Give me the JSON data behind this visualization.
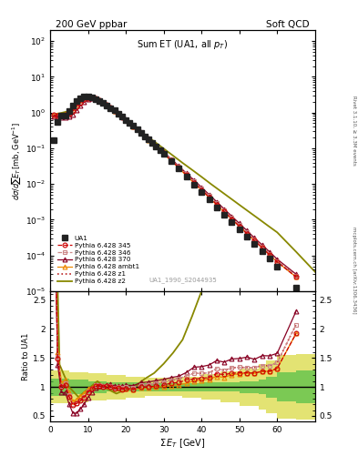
{
  "title_left": "200 GeV ppbar",
  "title_right": "Soft QCD",
  "plot_title": "Sum ET (UA1, all p_{T})",
  "watermark": "UA1_1990_S2044935",
  "right_label_top": "Rivet 3.1.10, ≥ 3.3M events",
  "right_label_bot": "mcplots.cern.ch [arXiv:1306.3436]",
  "xlabel": "Σ E_T [GeV]",
  "ylabel_main": "dσ/dsum E_T [mb,GeV⁻¹]",
  "ylabel_ratio": "Ratio to UA1",
  "ua1_x": [
    1.0,
    2.0,
    3.0,
    4.0,
    5.0,
    6.0,
    7.0,
    8.0,
    9.0,
    10.0,
    11.0,
    12.0,
    13.0,
    14.0,
    15.0,
    16.0,
    17.0,
    18.0,
    19.0,
    20.0,
    21.0,
    22.0,
    23.0,
    24.0,
    25.0,
    26.0,
    27.0,
    28.0,
    29.0,
    30.0,
    32.0,
    34.0,
    36.0,
    38.0,
    40.0,
    42.0,
    44.0,
    46.0,
    48.0,
    50.0,
    52.0,
    54.0,
    56.0,
    58.0,
    60.0,
    65.0
  ],
  "ua1_y": [
    0.17,
    0.55,
    0.82,
    0.82,
    1.1,
    1.6,
    2.1,
    2.5,
    2.8,
    2.8,
    2.7,
    2.4,
    2.15,
    1.9,
    1.6,
    1.35,
    1.15,
    0.95,
    0.78,
    0.63,
    0.52,
    0.42,
    0.34,
    0.27,
    0.215,
    0.175,
    0.14,
    0.11,
    0.087,
    0.07,
    0.043,
    0.027,
    0.016,
    0.0097,
    0.006,
    0.0037,
    0.0022,
    0.0014,
    0.00085,
    0.00053,
    0.00033,
    0.00021,
    0.00013,
    8.2e-05,
    5e-05,
    1.3e-05
  ],
  "p345_x": [
    1,
    2,
    3,
    4,
    5,
    6,
    7,
    8,
    9,
    10,
    11,
    12,
    13,
    14,
    15,
    16,
    17,
    18,
    19,
    20,
    22,
    24,
    26,
    28,
    30,
    32,
    34,
    36,
    38,
    40,
    42,
    44,
    46,
    48,
    50,
    52,
    54,
    56,
    58,
    60,
    65
  ],
  "p345_y": [
    0.85,
    0.82,
    0.82,
    0.85,
    0.92,
    1.1,
    1.5,
    1.9,
    2.3,
    2.55,
    2.6,
    2.45,
    2.2,
    1.9,
    1.62,
    1.36,
    1.12,
    0.93,
    0.75,
    0.61,
    0.4,
    0.27,
    0.175,
    0.112,
    0.072,
    0.046,
    0.029,
    0.018,
    0.011,
    0.0069,
    0.0043,
    0.0027,
    0.0017,
    0.00105,
    0.00066,
    0.00041,
    0.00026,
    0.000165,
    0.000104,
    6.6e-05,
    2.5e-05
  ],
  "p346_x": [
    1,
    2,
    3,
    4,
    5,
    6,
    7,
    8,
    9,
    10,
    11,
    12,
    13,
    14,
    15,
    16,
    17,
    18,
    19,
    20,
    22,
    24,
    26,
    28,
    30,
    32,
    34,
    36,
    38,
    40,
    42,
    44,
    46,
    48,
    50,
    52,
    54,
    56,
    58,
    60,
    65
  ],
  "p346_y": [
    0.87,
    0.84,
    0.84,
    0.87,
    0.95,
    1.12,
    1.52,
    1.93,
    2.33,
    2.57,
    2.62,
    2.47,
    2.22,
    1.93,
    1.64,
    1.38,
    1.14,
    0.95,
    0.77,
    0.63,
    0.415,
    0.278,
    0.182,
    0.117,
    0.076,
    0.048,
    0.031,
    0.019,
    0.012,
    0.0074,
    0.0046,
    0.0029,
    0.0018,
    0.00113,
    0.00071,
    0.00044,
    0.00028,
    0.000178,
    0.000112,
    7.1e-05,
    2.7e-05
  ],
  "p370_x": [
    1,
    2,
    3,
    4,
    5,
    6,
    7,
    8,
    9,
    10,
    11,
    12,
    13,
    14,
    15,
    16,
    17,
    18,
    19,
    20,
    22,
    24,
    26,
    28,
    30,
    32,
    34,
    36,
    38,
    40,
    42,
    44,
    46,
    48,
    50,
    52,
    54,
    56,
    58,
    60,
    65
  ],
  "p370_y": [
    0.78,
    0.76,
    0.74,
    0.74,
    0.78,
    0.88,
    1.15,
    1.55,
    1.95,
    2.3,
    2.45,
    2.38,
    2.18,
    1.92,
    1.66,
    1.41,
    1.17,
    0.97,
    0.79,
    0.65,
    0.43,
    0.29,
    0.19,
    0.122,
    0.079,
    0.05,
    0.032,
    0.02,
    0.013,
    0.0081,
    0.0051,
    0.0032,
    0.002,
    0.00126,
    0.00079,
    0.0005,
    0.00031,
    0.0002,
    0.000126,
    7.9e-05,
    3e-05
  ],
  "pambt_x": [
    1,
    2,
    3,
    4,
    5,
    6,
    7,
    8,
    9,
    10,
    11,
    12,
    13,
    14,
    15,
    16,
    17,
    18,
    19,
    20,
    22,
    24,
    26,
    28,
    30,
    32,
    34,
    36,
    38,
    40,
    42,
    44,
    46,
    48,
    50,
    52,
    54,
    56,
    58,
    60,
    65
  ],
  "pambt_y": [
    0.88,
    0.88,
    0.88,
    0.92,
    1.0,
    1.2,
    1.65,
    2.1,
    2.5,
    2.7,
    2.68,
    2.48,
    2.2,
    1.92,
    1.63,
    1.37,
    1.13,
    0.93,
    0.76,
    0.61,
    0.4,
    0.266,
    0.172,
    0.11,
    0.07,
    0.044,
    0.028,
    0.017,
    0.0107,
    0.0067,
    0.0042,
    0.0026,
    0.00163,
    0.00103,
    0.00065,
    0.00041,
    0.00026,
    0.000165,
    0.000104,
    6.6e-05,
    2.5e-05
  ],
  "pz1_x": [
    1,
    2,
    3,
    4,
    5,
    6,
    7,
    8,
    9,
    10,
    11,
    12,
    13,
    14,
    15,
    16,
    17,
    18,
    19,
    20,
    22,
    24,
    26,
    28,
    30,
    32,
    34,
    36,
    38,
    40,
    42,
    44,
    46,
    48,
    50,
    52,
    54,
    56,
    58,
    60,
    65
  ],
  "pz1_y": [
    0.86,
    0.84,
    0.84,
    0.86,
    0.93,
    1.1,
    1.5,
    1.9,
    2.32,
    2.57,
    2.62,
    2.47,
    2.22,
    1.93,
    1.64,
    1.38,
    1.14,
    0.95,
    0.77,
    0.63,
    0.415,
    0.278,
    0.182,
    0.117,
    0.076,
    0.048,
    0.031,
    0.019,
    0.012,
    0.0074,
    0.0046,
    0.0029,
    0.0018,
    0.00113,
    0.00071,
    0.00044,
    0.00028,
    0.000178,
    0.000112,
    7.1e-05,
    2.7e-05
  ],
  "pz2_x": [
    1.0,
    2.5,
    5.0,
    7.5,
    10.0,
    12.5,
    15.0,
    17.5,
    20.0,
    22.5,
    25.0,
    27.5,
    30.0,
    32.5,
    35.0,
    37.5,
    40.0,
    42.5,
    45.0,
    47.5,
    50.0,
    52.5,
    55.0,
    57.5,
    60.0,
    65.0,
    70.0
  ],
  "pz2_y": [
    0.9,
    0.95,
    1.1,
    1.9,
    2.7,
    2.5,
    1.55,
    0.93,
    0.6,
    0.385,
    0.245,
    0.155,
    0.098,
    0.062,
    0.039,
    0.025,
    0.0159,
    0.01,
    0.0064,
    0.0041,
    0.00262,
    0.00168,
    0.00108,
    0.00069,
    0.000444,
    0.000127,
    3.5e-05
  ],
  "color_345": "#cc0000",
  "color_346": "#cc8888",
  "color_370": "#880022",
  "color_ambt": "#ee8800",
  "color_z1": "#bb2222",
  "color_z2": "#888800",
  "color_ua1": "#222222",
  "band_inner_color": "#44bb44",
  "band_outer_color": "#cccc00",
  "xlim": [
    0,
    70
  ],
  "ylim_main": [
    1e-05,
    200
  ],
  "ylim_ratio": [
    0.4,
    2.65
  ],
  "band_x": [
    0,
    5,
    10,
    15,
    20,
    25,
    30,
    35,
    40,
    45,
    50,
    55,
    57,
    60,
    65,
    70
  ],
  "band_yin_lo": [
    0.85,
    0.88,
    0.9,
    0.92,
    0.92,
    0.93,
    0.93,
    0.93,
    0.92,
    0.92,
    0.9,
    0.87,
    0.82,
    0.75,
    0.72,
    0.72
  ],
  "band_yin_hi": [
    1.15,
    1.12,
    1.1,
    1.08,
    1.08,
    1.07,
    1.07,
    1.07,
    1.08,
    1.08,
    1.1,
    1.13,
    1.18,
    1.25,
    1.28,
    1.28
  ],
  "band_yout_lo": [
    0.72,
    0.74,
    0.76,
    0.79,
    0.82,
    0.84,
    0.84,
    0.82,
    0.78,
    0.73,
    0.68,
    0.61,
    0.54,
    0.45,
    0.43,
    0.43
  ],
  "band_yout_hi": [
    1.28,
    1.26,
    1.24,
    1.21,
    1.18,
    1.16,
    1.16,
    1.18,
    1.22,
    1.27,
    1.32,
    1.39,
    1.46,
    1.55,
    1.57,
    1.57
  ]
}
